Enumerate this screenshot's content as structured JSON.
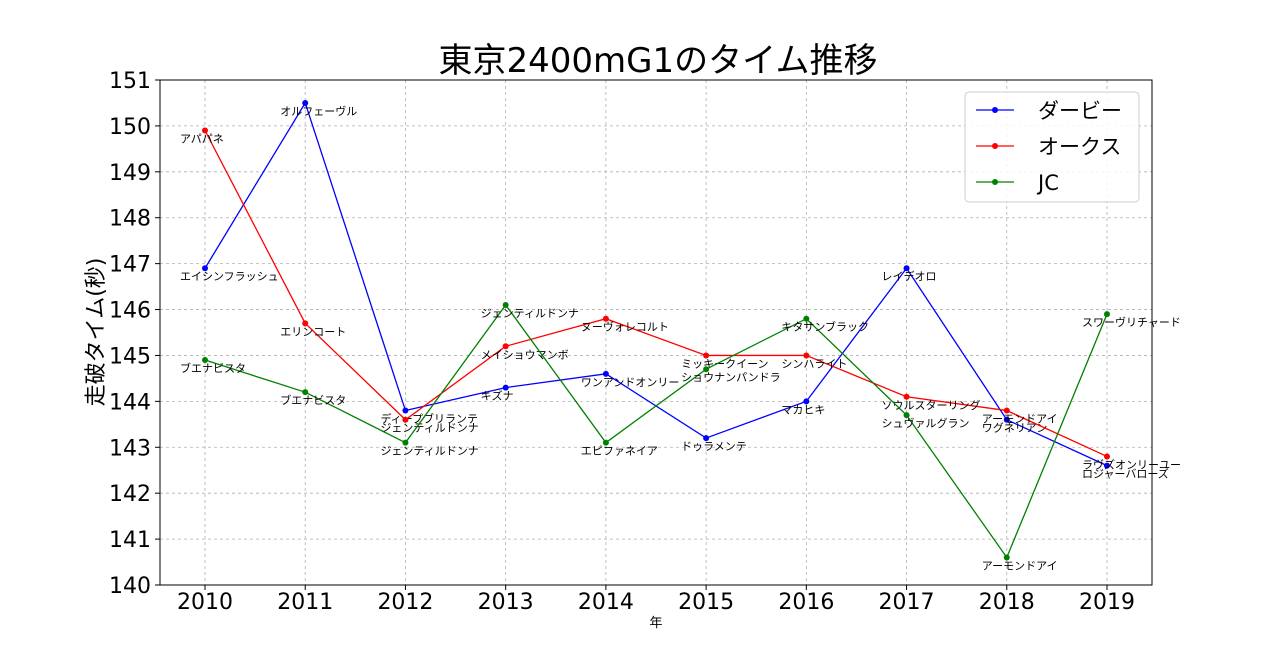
{
  "chart_data": {
    "type": "line",
    "title": "東京2400mG1のタイム推移",
    "xlabel": "年",
    "ylabel": "走破タイム(秒)",
    "categories": [
      "2010",
      "2011",
      "2012",
      "2013",
      "2014",
      "2015",
      "2016",
      "2017",
      "2018",
      "2019"
    ],
    "ylim": [
      140,
      151
    ],
    "yticks": [
      140,
      141,
      142,
      143,
      144,
      145,
      146,
      147,
      148,
      149,
      150,
      151
    ],
    "grid": true,
    "legend_position": "top-right",
    "series": [
      {
        "name": "ダービー",
        "color": "#0000ff",
        "values": [
          146.9,
          150.5,
          143.8,
          144.3,
          144.6,
          143.2,
          144.0,
          146.9,
          143.6,
          142.6
        ],
        "labels": [
          "エイシンフラッシュ",
          "オルフェーヴル",
          "ディープブリランテ",
          "キズナ",
          "ワンアンドオンリー",
          "ドゥラメンテ",
          "マカヒキ",
          "レイデオロ",
          "ワグネリアン",
          "ロジャーバローズ"
        ]
      },
      {
        "name": "オークス",
        "color": "#ff0000",
        "values": [
          149.9,
          145.7,
          143.6,
          145.2,
          145.8,
          145.0,
          145.0,
          144.1,
          143.8,
          142.8
        ],
        "labels": [
          "アパパネ",
          "エリンコート",
          "ジェンティルドンナ",
          "メイショウマンボ",
          "ヌーヴォレコルト",
          "ミッキークイーン",
          "シンハライト",
          "ソウルスターリング",
          "アーモンドアイ",
          "ラヴズオンリーユー"
        ]
      },
      {
        "name": "JC",
        "color": "#008000",
        "values": [
          144.9,
          144.2,
          143.1,
          146.1,
          143.1,
          144.7,
          145.8,
          143.7,
          140.6,
          145.9
        ],
        "labels": [
          "ブエナビスタ",
          "ブエナビスタ",
          "ジェンティルドンナ",
          "ジェンティルドンナ",
          "エピファネイア",
          "ショウナンパンドラ",
          "キタサンブラック",
          "シュヴァルグラン",
          "アーモンドアイ",
          "スワーヴリチャード"
        ]
      }
    ]
  }
}
